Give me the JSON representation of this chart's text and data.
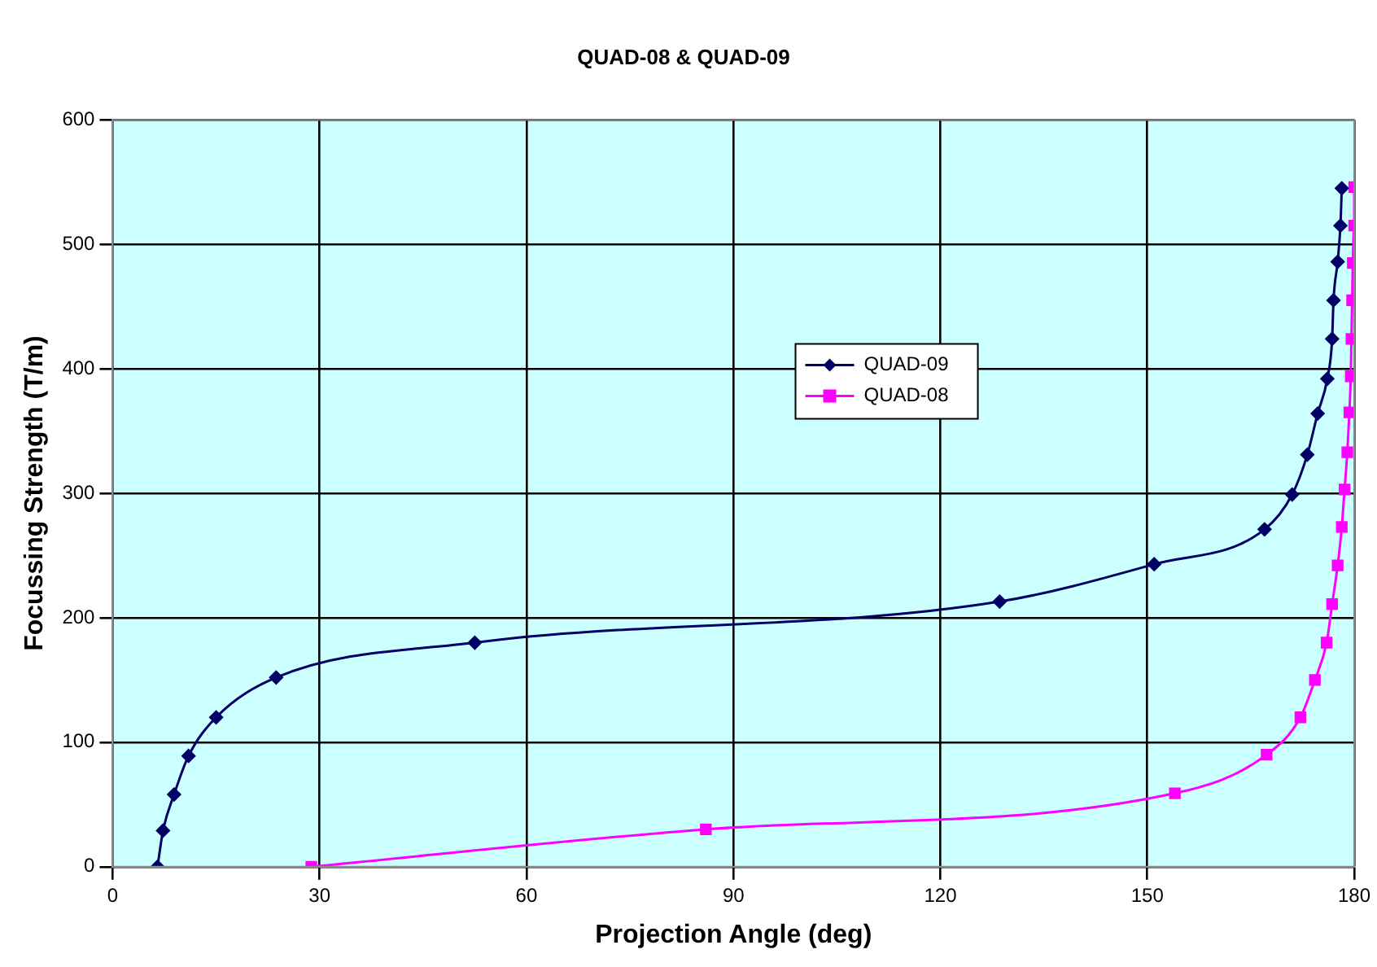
{
  "chart_data": {
    "type": "line",
    "title": "QUAD-08 & QUAD-09",
    "xlabel": "Projection Angle (deg)",
    "ylabel": "Focussing Strength (T/m)",
    "xlim": [
      0,
      180
    ],
    "xticks": [
      0,
      30,
      60,
      90,
      120,
      150,
      180
    ],
    "ylim": [
      0,
      600
    ],
    "yticks": [
      0,
      100,
      200,
      300,
      400,
      500,
      600
    ],
    "grid": true,
    "legend": "right",
    "series": [
      {
        "name": "QUAD-09",
        "color": "#000066",
        "marker": "diamond",
        "x": [
          6.5,
          7.3,
          8.9,
          11,
          15,
          23.7,
          52.5,
          128.6,
          151,
          167,
          171,
          173.2,
          174.7,
          176.1,
          176.8,
          177,
          177.6,
          178,
          178.2
        ],
        "values": [
          0,
          29,
          58,
          89,
          120,
          152,
          180,
          213,
          243,
          271,
          299,
          331,
          364,
          392,
          424,
          455,
          486,
          515,
          545
        ]
      },
      {
        "name": "QUAD-08",
        "color": "#ff00ff",
        "marker": "square",
        "x": [
          28.8,
          86,
          154,
          167.3,
          172.2,
          174.3,
          176,
          176.8,
          177.6,
          178.2,
          178.6,
          179,
          179.3,
          179.5,
          179.6,
          179.7,
          179.8,
          180,
          180
        ],
        "values": [
          0,
          30,
          59,
          90,
          120,
          150,
          180,
          211,
          242,
          273,
          303,
          333,
          365,
          394,
          424,
          455,
          485,
          515,
          546
        ]
      }
    ]
  }
}
